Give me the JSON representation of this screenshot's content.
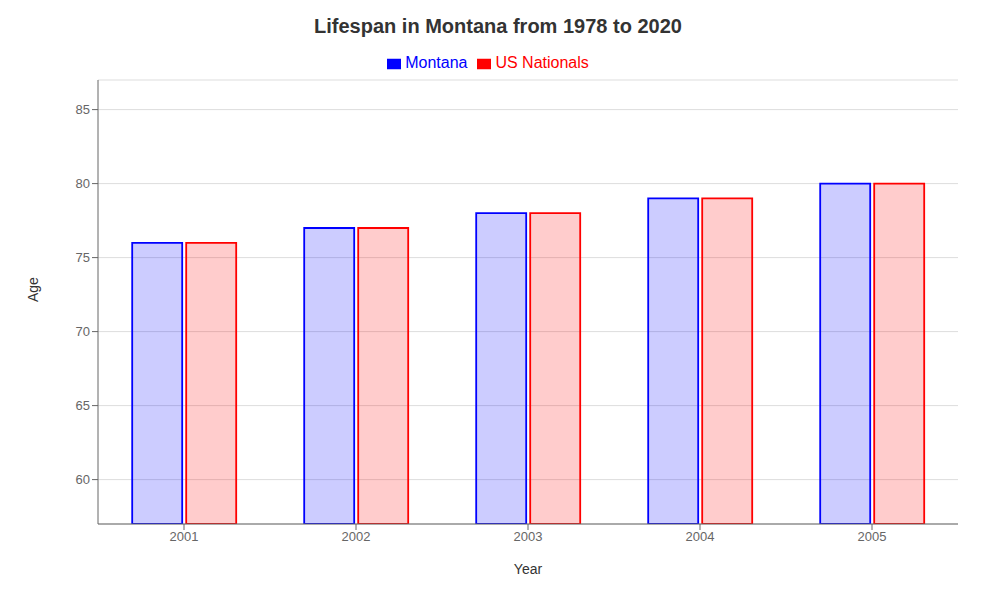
{
  "chart_data": {
    "type": "bar",
    "title": "Lifespan in Montana from 1978 to 2020",
    "xlabel": "Year",
    "ylabel": "Age",
    "categories": [
      "2001",
      "2002",
      "2003",
      "2004",
      "2005"
    ],
    "series": [
      {
        "name": "Montana",
        "color": "#0000FF",
        "values": [
          76,
          77,
          78,
          79,
          80
        ]
      },
      {
        "name": "US Nationals",
        "color": "#FF0000",
        "values": [
          76,
          77,
          78,
          79,
          80
        ]
      }
    ],
    "ylim": [
      57,
      87
    ],
    "yticks": [
      60,
      65,
      70,
      75,
      80,
      85
    ],
    "grid": true,
    "legend": "top"
  }
}
